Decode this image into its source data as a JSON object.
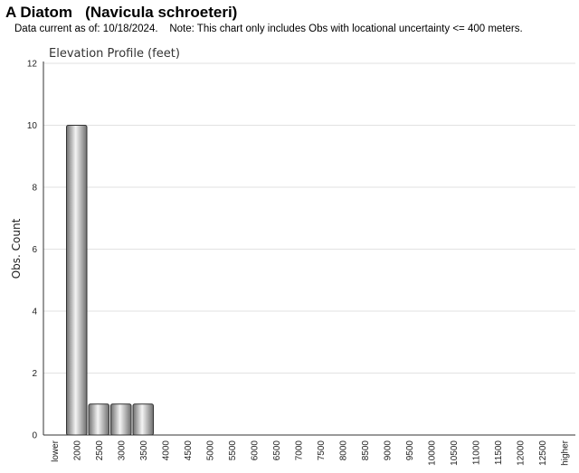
{
  "header": {
    "title": "A Diatom   (Navicula schroeteri)",
    "note": "Data current as of: 10/18/2024.    Note: This chart only includes Obs with locational uncertainty <= 400 meters."
  },
  "chart_data": {
    "type": "bar",
    "title": "Elevation Profile (feet)",
    "xlabel": "",
    "ylabel": "Obs. Count",
    "ylim": [
      0,
      12
    ],
    "yticks": [
      0,
      2,
      4,
      6,
      8,
      10,
      12
    ],
    "grid": true,
    "legend": "none",
    "categories": [
      "lower",
      "2000",
      "2500",
      "3000",
      "3500",
      "4000",
      "4500",
      "5000",
      "5500",
      "6000",
      "6500",
      "7000",
      "7500",
      "8000",
      "8500",
      "9000",
      "9500",
      "10000",
      "10500",
      "11000",
      "11500",
      "12000",
      "12500",
      "higher"
    ],
    "values": [
      0,
      10,
      1,
      1,
      1,
      0,
      0,
      0,
      0,
      0,
      0,
      0,
      0,
      0,
      0,
      0,
      0,
      0,
      0,
      0,
      0,
      0,
      0,
      0
    ],
    "colors": {
      "bar_dark": "#6f6f6f",
      "bar_light": "#f4f4f4",
      "bar_stroke": "#333333",
      "grid": "#e2e2e2",
      "axis": "#333333"
    }
  }
}
